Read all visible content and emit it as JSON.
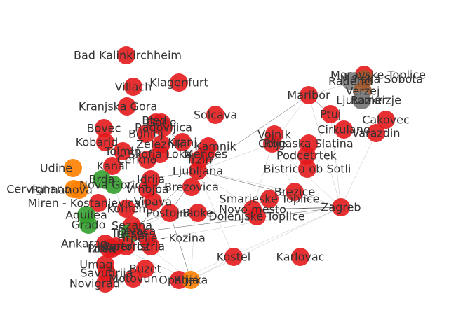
{
  "graph": {
    "colors": {
      "red": "#e31a1c",
      "green": "#33a02c",
      "orange": "#ff7f00",
      "brown": "#a05a2c",
      "gray": "#808080"
    },
    "nodes": [
      {
        "id": "bad_kalin",
        "label": "Bad Kalinkirchheim",
        "color": "red"
      },
      {
        "id": "villach",
        "label": "Villach",
        "color": "red"
      },
      {
        "id": "klagenfurt",
        "label": "Klagenfurt",
        "color": "red"
      },
      {
        "id": "kranjska",
        "label": "Kranjska Gora",
        "color": "red"
      },
      {
        "id": "bovec",
        "label": "Bovec",
        "color": "red"
      },
      {
        "id": "bled",
        "label": "Bled",
        "color": "red"
      },
      {
        "id": "bohinj",
        "label": "Bohinj",
        "color": "red"
      },
      {
        "id": "gorje",
        "label": "Gorje",
        "color": "red"
      },
      {
        "id": "radovljica",
        "label": "Radovljica",
        "color": "red"
      },
      {
        "id": "kobarid",
        "label": "Kobarid",
        "color": "red"
      },
      {
        "id": "tolmin",
        "label": "Tolmin",
        "color": "red"
      },
      {
        "id": "zelezniki",
        "label": "Železniki",
        "color": "red"
      },
      {
        "id": "kranj",
        "label": "Kranj",
        "color": "red"
      },
      {
        "id": "skofja",
        "label": "Škofja Loka",
        "color": "red"
      },
      {
        "id": "cerkno",
        "label": "Cerkno",
        "color": "red"
      },
      {
        "id": "kamnik",
        "label": "Kamnik",
        "color": "red"
      },
      {
        "id": "menges",
        "label": "Menges",
        "color": "red"
      },
      {
        "id": "trzin",
        "label": "Trzin",
        "color": "red"
      },
      {
        "id": "ljubljana",
        "label": "Ljubljana",
        "color": "red"
      },
      {
        "id": "solcava",
        "label": "Solcava",
        "color": "red"
      },
      {
        "id": "udine",
        "label": "Udine",
        "color": "orange"
      },
      {
        "id": "kanal",
        "label": "Kanal",
        "color": "red"
      },
      {
        "id": "brda",
        "label": "Brda",
        "color": "green"
      },
      {
        "id": "nova_gorica",
        "label": "Nova Gorica",
        "color": "green"
      },
      {
        "id": "vrhojba",
        "label": "Vrhojba",
        "color": "red"
      },
      {
        "id": "idrija",
        "label": "Idrija",
        "color": "red"
      },
      {
        "id": "brezovica",
        "label": "Brezovica",
        "color": "red"
      },
      {
        "id": "palmanova",
        "label": "Palmanova",
        "color": "orange"
      },
      {
        "id": "cervignano",
        "label": "Cervignano",
        "color": "orange"
      },
      {
        "id": "miren",
        "label": "Miren - Kostanjevica",
        "color": "red"
      },
      {
        "id": "vipava",
        "label": "Vipava",
        "color": "red"
      },
      {
        "id": "komen",
        "label": "Komen",
        "color": "red"
      },
      {
        "id": "postojna",
        "label": "Postojna",
        "color": "red"
      },
      {
        "id": "bloke",
        "label": "Bloke",
        "color": "red"
      },
      {
        "id": "aquilea",
        "label": "Aquilea",
        "color": "green"
      },
      {
        "id": "grado",
        "label": "Grado",
        "color": "green"
      },
      {
        "id": "sezana",
        "label": "Sezana",
        "color": "red"
      },
      {
        "id": "trieste",
        "label": "Trieste",
        "color": "green"
      },
      {
        "id": "divaca",
        "label": "Divaca",
        "color": "red"
      },
      {
        "id": "hrpelje",
        "label": "Hrpelje - Kozina",
        "color": "red"
      },
      {
        "id": "ankaran",
        "label": "Ankaran",
        "color": "red"
      },
      {
        "id": "koper",
        "label": "Koper",
        "color": "red"
      },
      {
        "id": "piran",
        "label": "Piran",
        "color": "red"
      },
      {
        "id": "izola",
        "label": "Izola",
        "color": "red"
      },
      {
        "id": "portoroz",
        "label": "Portoroz",
        "color": "red"
      },
      {
        "id": "istria",
        "label": "Istria",
        "color": "red"
      },
      {
        "id": "umag",
        "label": "Umag",
        "color": "red"
      },
      {
        "id": "savudrija",
        "label": "Savudrija",
        "color": "red"
      },
      {
        "id": "buzet",
        "label": "Buzet",
        "color": "red"
      },
      {
        "id": "novigrad",
        "label": "Novigrad",
        "color": "red"
      },
      {
        "id": "motovun",
        "label": "Motovun",
        "color": "red"
      },
      {
        "id": "opatija",
        "label": "Opatija",
        "color": "red"
      },
      {
        "id": "rijeka",
        "label": "Rijeka",
        "color": "orange"
      },
      {
        "id": "kostel",
        "label": "Kostel",
        "color": "red"
      },
      {
        "id": "karlovac",
        "label": "Karlovac",
        "color": "red"
      },
      {
        "id": "zagreb",
        "label": "Zagreb",
        "color": "red"
      },
      {
        "id": "brezice",
        "label": "Brezice",
        "color": "red"
      },
      {
        "id": "smarjeske",
        "label": "Smarjeske Toplice",
        "color": "red"
      },
      {
        "id": "novo_mesto",
        "label": "Novo mesto",
        "color": "red"
      },
      {
        "id": "dolenjske",
        "label": "Dolenjske Toplice",
        "color": "red"
      },
      {
        "id": "bistrica",
        "label": "Bistrica ob Sotli",
        "color": "red"
      },
      {
        "id": "podcetrtek",
        "label": "Podcetrtek",
        "color": "red"
      },
      {
        "id": "rogaska",
        "label": "Rogaska Slatina",
        "color": "red"
      },
      {
        "id": "celje",
        "label": "Celje",
        "color": "red"
      },
      {
        "id": "vojnik",
        "label": "Vojnik",
        "color": "red"
      },
      {
        "id": "maribor",
        "label": "Maribor",
        "color": "red"
      },
      {
        "id": "ptuj",
        "label": "Ptuj",
        "color": "red"
      },
      {
        "id": "cirkulane",
        "label": "Cirkulane",
        "color": "red"
      },
      {
        "id": "cakovec",
        "label": "Cakovec",
        "color": "red"
      },
      {
        "id": "varazdin",
        "label": "Varazdin",
        "color": "red"
      },
      {
        "id": "moravske",
        "label": "Moravske Toplice",
        "color": "red"
      },
      {
        "id": "murska",
        "label": "Murska Sobota",
        "color": "brown"
      },
      {
        "id": "radenci",
        "label": "Radenci",
        "color": "gray"
      },
      {
        "id": "verzej",
        "label": "Verzej",
        "color": "brown"
      },
      {
        "id": "ljutomer",
        "label": "Ljutomer",
        "color": "gray"
      },
      {
        "id": "razkrizje",
        "label": "Razkrizje",
        "color": "gray"
      }
    ],
    "edges": [
      [
        "ljubljana",
        "zagreb"
      ],
      [
        "ljubljana",
        "brezice"
      ],
      [
        "ljubljana",
        "celje"
      ],
      [
        "ljubljana",
        "maribor"
      ],
      [
        "ljubljana",
        "rijeka"
      ],
      [
        "ljubljana",
        "kostel"
      ],
      [
        "ljubljana",
        "postojna"
      ],
      [
        "ljubljana",
        "kranj"
      ],
      [
        "ljubljana",
        "novo_mesto"
      ],
      [
        "ljubljana",
        "koper"
      ],
      [
        "ljubljana",
        "trieste"
      ],
      [
        "zagreb",
        "rijeka"
      ],
      [
        "zagreb",
        "postojna"
      ],
      [
        "zagreb",
        "celje"
      ],
      [
        "zagreb",
        "varazdin"
      ],
      [
        "zagreb",
        "novo_mesto"
      ],
      [
        "zagreb",
        "opatija"
      ],
      [
        "zagreb",
        "koper"
      ],
      [
        "zagreb",
        "trieste"
      ],
      [
        "zagreb",
        "ptuj"
      ],
      [
        "trieste",
        "postojna"
      ],
      [
        "trieste",
        "koper"
      ],
      [
        "trieste",
        "rijeka"
      ],
      [
        "maribor",
        "celje"
      ],
      [
        "maribor",
        "ptuj"
      ],
      [
        "maribor",
        "murska"
      ],
      [
        "maribor",
        "zagreb"
      ],
      [
        "kranj",
        "bled"
      ],
      [
        "celje",
        "rogaska"
      ],
      [
        "celje",
        "novo_mesto"
      ],
      [
        "rijeka",
        "postojna"
      ],
      [
        "rijeka",
        "kostel"
      ],
      [
        "novo_mesto",
        "brezice"
      ],
      [
        "ljubljana",
        "nova_gorica"
      ],
      [
        "trieste",
        "nova_gorica"
      ],
      [
        "ljubljana",
        "bled"
      ],
      [
        "postojna",
        "sezana"
      ],
      [
        "koper",
        "rijeka"
      ],
      [
        "brezice",
        "celje"
      ],
      [
        "murska",
        "radenci"
      ],
      [
        "radenci",
        "ljutomer"
      ],
      [
        "zagreb",
        "brezice"
      ],
      [
        "trieste",
        "sezana"
      ]
    ]
  }
}
